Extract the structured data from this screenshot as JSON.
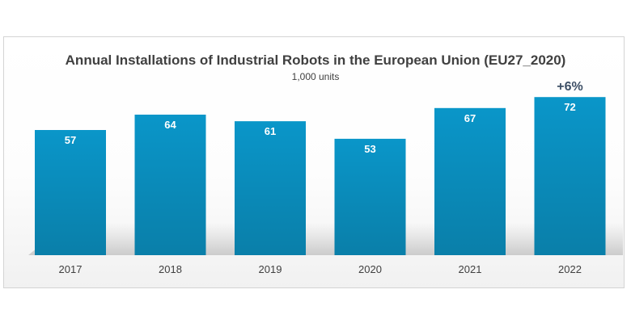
{
  "chart_data": {
    "type": "bar",
    "title": "Annual Installations of Industrial Robots in the European Union (EU27_2020)",
    "subtitle": "1,000 units",
    "categories": [
      "2017",
      "2018",
      "2019",
      "2020",
      "2021",
      "2022"
    ],
    "values": [
      57,
      64,
      61,
      53,
      67,
      72
    ],
    "data_labels": [
      "57",
      "64",
      "61",
      "53",
      "67",
      "72"
    ],
    "annotation": "+6%",
    "ylim": [
      0,
      80
    ],
    "grid": false,
    "legend": "none",
    "bar_color_top": "#0a96c9",
    "bar_color_bottom": "#0a7fa9",
    "label_color": "#ffffff",
    "annotation_color": "#3d4f66",
    "text_color": "#404040"
  }
}
